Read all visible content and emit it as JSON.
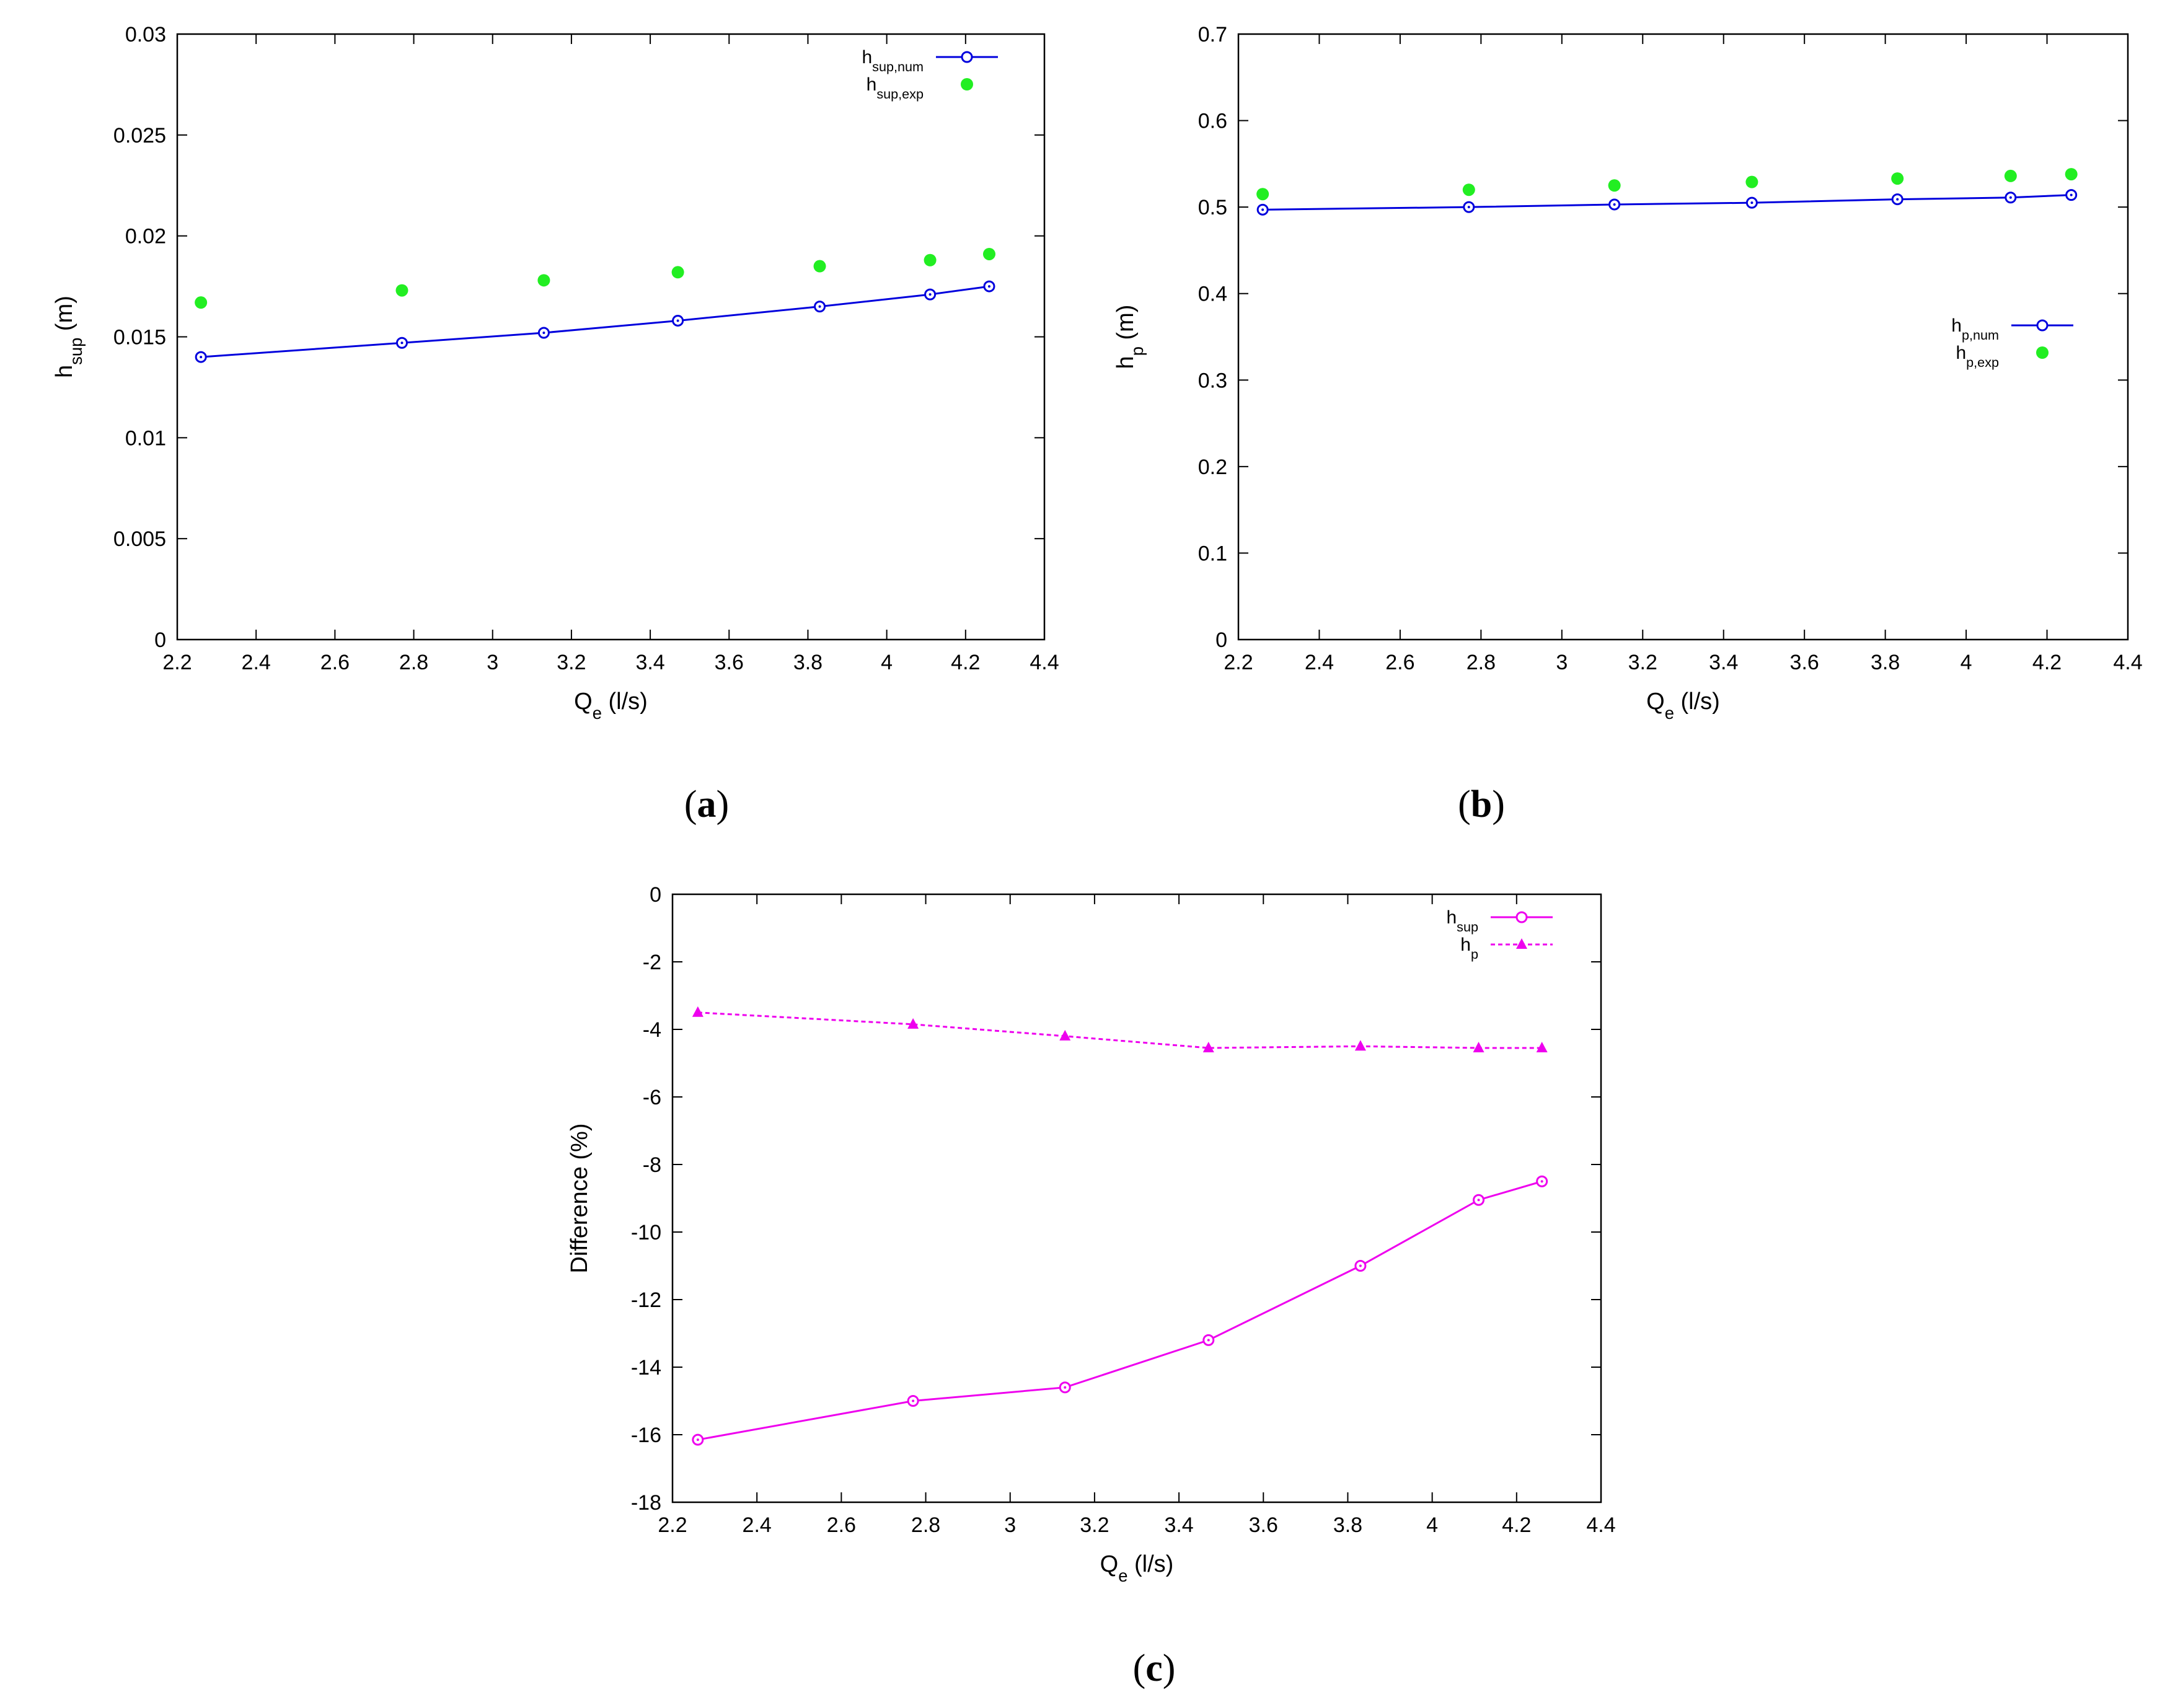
{
  "chart_data": [
    {
      "id": "a",
      "type": "line",
      "panel_label": "a",
      "xlabel": "Q",
      "xlabel_sub": "e",
      "xlabel_unit": "(l/s)",
      "ylabel": "h",
      "ylabel_sub": "sup",
      "ylabel_unit": "(m)",
      "xlim": [
        2.2,
        4.4
      ],
      "ylim": [
        0,
        0.03
      ],
      "xticks": [
        "2.2",
        "2.4",
        "2.6",
        "2.8",
        "3",
        "3.2",
        "3.4",
        "3.6",
        "3.8",
        "4",
        "4.2",
        "4.4"
      ],
      "yticks": [
        "0",
        "0.005",
        "0.01",
        "0.015",
        "0.02",
        "0.025",
        "0.03"
      ],
      "legend_position": "top-right",
      "series": [
        {
          "name": "h",
          "name_sub": "sup,num",
          "style": "line-open-circle",
          "color": "#0000dd",
          "x": [
            2.26,
            2.77,
            3.13,
            3.47,
            3.83,
            4.11,
            4.26
          ],
          "y": [
            0.014,
            0.0147,
            0.0152,
            0.0158,
            0.0165,
            0.0171,
            0.0175
          ]
        },
        {
          "name": "h",
          "name_sub": "sup,exp",
          "style": "filled-dot",
          "color": "#22ee22",
          "x": [
            2.26,
            2.77,
            3.13,
            3.47,
            3.83,
            4.11,
            4.26
          ],
          "y": [
            0.0167,
            0.0173,
            0.0178,
            0.0182,
            0.0185,
            0.0188,
            0.0191
          ]
        }
      ]
    },
    {
      "id": "b",
      "type": "line",
      "panel_label": "b",
      "xlabel": "Q",
      "xlabel_sub": "e",
      "xlabel_unit": "(l/s)",
      "ylabel": "h",
      "ylabel_sub": "p",
      "ylabel_unit": "(m)",
      "xlim": [
        2.2,
        4.4
      ],
      "ylim": [
        0,
        0.7
      ],
      "xticks": [
        "2.2",
        "2.4",
        "2.6",
        "2.8",
        "3",
        "3.2",
        "3.4",
        "3.6",
        "3.8",
        "4",
        "4.2",
        "4.4"
      ],
      "yticks": [
        "0",
        "0.1",
        "0.2",
        "0.3",
        "0.4",
        "0.5",
        "0.6",
        "0.7"
      ],
      "legend_position": "middle-right",
      "series": [
        {
          "name": "h",
          "name_sub": "p,num",
          "style": "line-open-circle",
          "color": "#0000dd",
          "x": [
            2.26,
            2.77,
            3.13,
            3.47,
            3.83,
            4.11,
            4.26
          ],
          "y": [
            0.497,
            0.5,
            0.503,
            0.505,
            0.509,
            0.511,
            0.514
          ]
        },
        {
          "name": "h",
          "name_sub": "p,exp",
          "style": "filled-dot",
          "color": "#22ee22",
          "x": [
            2.26,
            2.77,
            3.13,
            3.47,
            3.83,
            4.11,
            4.26
          ],
          "y": [
            0.515,
            0.52,
            0.525,
            0.529,
            0.533,
            0.536,
            0.538
          ]
        }
      ]
    },
    {
      "id": "c",
      "type": "line",
      "panel_label": "c",
      "xlabel": "Q",
      "xlabel_sub": "e",
      "xlabel_unit": "(l/s)",
      "ylabel": "Difference (%)",
      "ylabel_sub": "",
      "ylabel_unit": "",
      "xlim": [
        2.2,
        4.4
      ],
      "ylim": [
        -18,
        0
      ],
      "xticks": [
        "2.2",
        "2.4",
        "2.6",
        "2.8",
        "3",
        "3.2",
        "3.4",
        "3.6",
        "3.8",
        "4",
        "4.2",
        "4.4"
      ],
      "yticks": [
        "-18",
        "-16",
        "-14",
        "-12",
        "-10",
        "-8",
        "-6",
        "-4",
        "-2",
        "0"
      ],
      "legend_position": "top-right",
      "series": [
        {
          "name": "h",
          "name_sub": "sup",
          "style": "line-open-circle",
          "color": "#ee00ee",
          "x": [
            2.26,
            2.77,
            3.13,
            3.47,
            3.83,
            4.11,
            4.26
          ],
          "y": [
            -16.15,
            -15.0,
            -14.6,
            -13.2,
            -11.0,
            -9.05,
            -8.5
          ]
        },
        {
          "name": "h",
          "name_sub": "p",
          "style": "dashed-triangle",
          "color": "#ee00ee",
          "x": [
            2.26,
            2.77,
            3.13,
            3.47,
            3.83,
            4.11,
            4.26
          ],
          "y": [
            -3.5,
            -3.85,
            -4.2,
            -4.55,
            -4.5,
            -4.55,
            -4.55
          ]
        }
      ]
    }
  ]
}
